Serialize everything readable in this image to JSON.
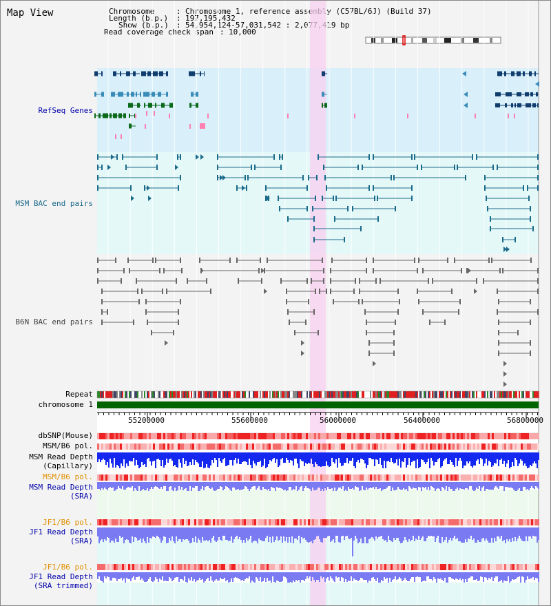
{
  "title": "Map View",
  "info": {
    "chromosome_label": "Chromosome",
    "chromosome_value": "Chromosome 1, reference assembly (C57BL/6J) (Build 37)",
    "length_label": "Length (b.p.)",
    "length_value": "197,195,432",
    "show_label": "Show (b.p.)",
    "show_value": "54,954,124-57,031,542 : 2,077,419 bp",
    "coverage_label": "Read coverage check span",
    "coverage_value": "10,000"
  },
  "tracks": {
    "refseq": "RefSeq Genes",
    "msm_bac": "MSM BAC end pairs",
    "b6n_bac": "B6N BAC end pairs",
    "repeat": "Repeat",
    "chromosome": "chromosome 1",
    "dbsnp": "dbSNP(Mouse)",
    "msm_b6_pol_1": "MSM/B6 pol.",
    "msm_read_depth_cap_1": "MSM Read Depth",
    "msm_read_depth_cap_2": "(Capillary)",
    "msm_b6_pol_2": "MSM/B6 pol.",
    "msm_read_depth_sra_1": "MSM Read Depth",
    "msm_read_depth_sra_2": "(SRA)",
    "jf1_b6_pol_1": "JF1/B6 pol.",
    "jf1_read_depth_sra_1": "JF1 Read Depth",
    "jf1_read_depth_sra_2": "(SRA)",
    "jf1_b6_pol_2": "JF1/B6 pol.",
    "jf1_read_depth_trim_1": "JF1 Read Depth",
    "jf1_read_depth_trim_2": "(SRA trimmed)"
  },
  "ruler": {
    "ticks": [
      "55200000",
      "55600000",
      "56000000",
      "56400000",
      "56800000"
    ]
  },
  "colors": {
    "refseq_bg": "#d9effa",
    "bac_bg": "#e4f8f8",
    "highlight": "#f8d0f0",
    "msm_bac": "#1a6a8a",
    "chromosome_bar": "#006400",
    "gene_dark": "#103c6e",
    "gene_mid": "#3a8cb8",
    "gene_green": "#0a6a1a",
    "depth_blue": "#1428f0",
    "depth_light": "#7a7af2",
    "label_blue": "#0000aa",
    "label_orange": "#e09000"
  }
}
